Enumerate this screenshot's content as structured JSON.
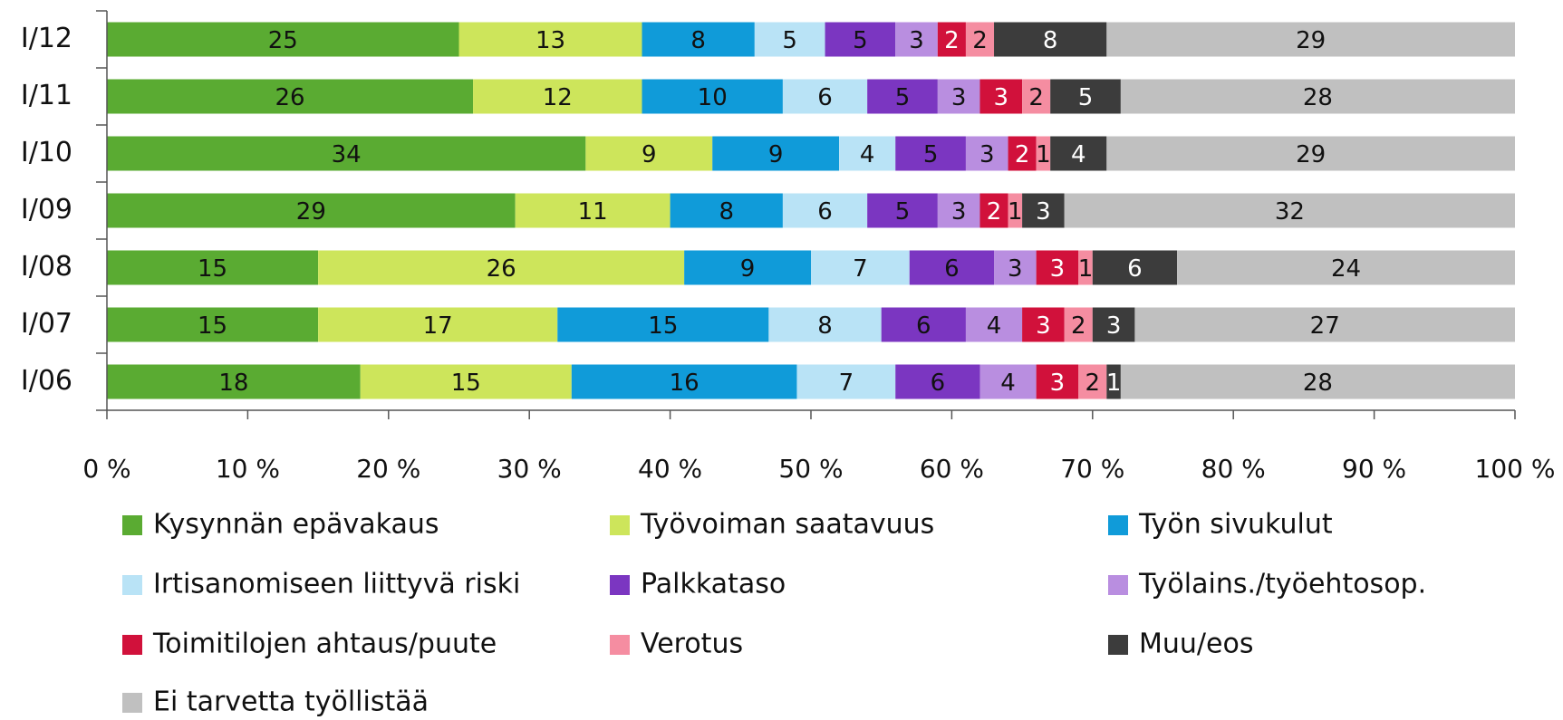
{
  "chart_data": {
    "type": "stacked-bar-horizontal",
    "categories": [
      "I/12",
      "I/11",
      "I/10",
      "I/09",
      "I/08",
      "I/07",
      "I/06"
    ],
    "series": [
      {
        "name": "Kysynnän epävakaus",
        "color": "#5aab32",
        "values": [
          25,
          26,
          34,
          29,
          15,
          15,
          18
        ]
      },
      {
        "name": "Työvoiman saatavuus",
        "color": "#cde55b",
        "values": [
          13,
          12,
          9,
          11,
          26,
          17,
          15
        ]
      },
      {
        "name": "Työn sivukulut",
        "color": "#109bd9",
        "values": [
          8,
          10,
          9,
          8,
          9,
          15,
          16
        ]
      },
      {
        "name": "Irtisanomiseen liittyvä riski",
        "color": "#b9e3f6",
        "values": [
          5,
          6,
          4,
          6,
          7,
          8,
          7
        ]
      },
      {
        "name": "Palkkataso",
        "color": "#7b36c1",
        "values": [
          5,
          5,
          5,
          5,
          6,
          6,
          6
        ]
      },
      {
        "name": "Työlains./työehtosop.",
        "color": "#b98ee0",
        "values": [
          3,
          3,
          3,
          3,
          3,
          4,
          4
        ]
      },
      {
        "name": "Toimitilojen ahtaus/puute",
        "color": "#d1113b",
        "values": [
          2,
          3,
          2,
          2,
          3,
          3,
          3
        ]
      },
      {
        "name": "Verotus",
        "color": "#f58da1",
        "values": [
          2,
          2,
          1,
          1,
          1,
          2,
          2
        ]
      },
      {
        "name": "Muu/eos",
        "color": "#3c3c3c",
        "values": [
          8,
          5,
          4,
          3,
          6,
          3,
          1
        ]
      },
      {
        "name": "Ei tarvetta työllistää",
        "color": "#c0c0c0",
        "values": [
          29,
          28,
          29,
          32,
          24,
          27,
          28
        ]
      }
    ],
    "xlim": [
      0,
      100
    ],
    "xticks": [
      {
        "value": 0,
        "label": "0 %"
      },
      {
        "value": 10,
        "label": "10 %"
      },
      {
        "value": 20,
        "label": "20 %"
      },
      {
        "value": 30,
        "label": "30 %"
      },
      {
        "value": 40,
        "label": "40 %"
      },
      {
        "value": 50,
        "label": "50 %"
      },
      {
        "value": 60,
        "label": "60 %"
      },
      {
        "value": 70,
        "label": "70 %"
      },
      {
        "value": 80,
        "label": "80 %"
      },
      {
        "value": 90,
        "label": "90 %"
      },
      {
        "value": 100,
        "label": "100 %"
      }
    ],
    "legend": "bottom"
  }
}
